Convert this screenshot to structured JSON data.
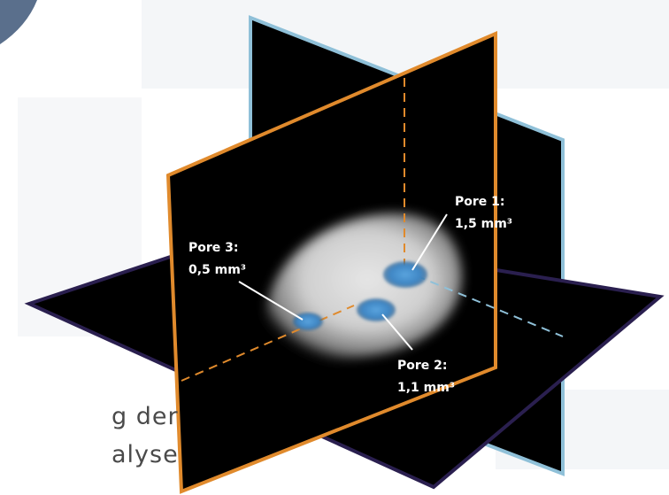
{
  "colors": {
    "vertical_plane_a_edge": "#e08a2c",
    "vertical_plane_b_edge": "#8fc0d8",
    "horizontal_plane_edge": "#2a1f4f",
    "plane_fill": "#000000",
    "pore_fill": "#3f86c4",
    "leader_line": "#ffffff",
    "caption_text": "#4a4a4a"
  },
  "pores": [
    {
      "id": "pore-1",
      "name": "Pore 1:",
      "volume": "1,5 mm³"
    },
    {
      "id": "pore-2",
      "name": "Pore 2:",
      "volume": "1,1 mm³"
    },
    {
      "id": "pore-3",
      "name": "Pore 3:",
      "volume": "0,5 mm³"
    }
  ],
  "caption": {
    "line1": "g der",
    "line2": "alyse"
  }
}
